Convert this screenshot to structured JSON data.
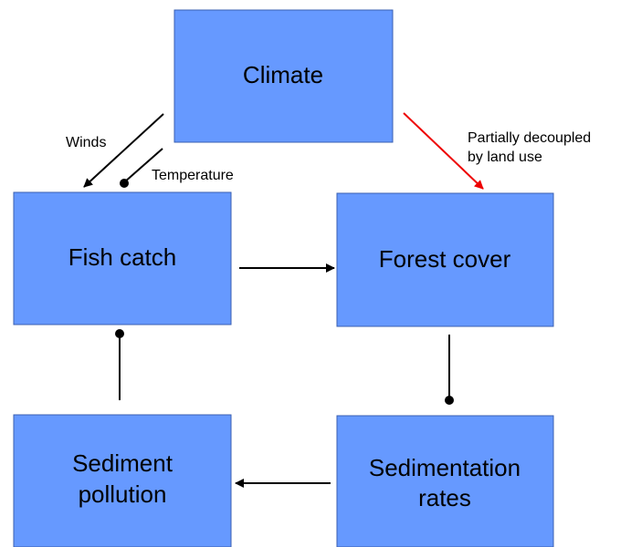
{
  "nodes": [
    {
      "label": [
        "Climate"
      ]
    },
    {
      "label": [
        "Fish catch"
      ]
    },
    {
      "label": [
        "Forest cover"
      ]
    },
    {
      "label": [
        "Sediment",
        "pollution"
      ]
    },
    {
      "label": [
        "Sedimentation",
        "rates"
      ]
    }
  ],
  "edges": [
    {
      "label": [
        "Winds"
      ]
    },
    {
      "label": [
        "Temperature"
      ]
    },
    {
      "label": [
        "Partially decoupled",
        "by land use"
      ]
    }
  ]
}
